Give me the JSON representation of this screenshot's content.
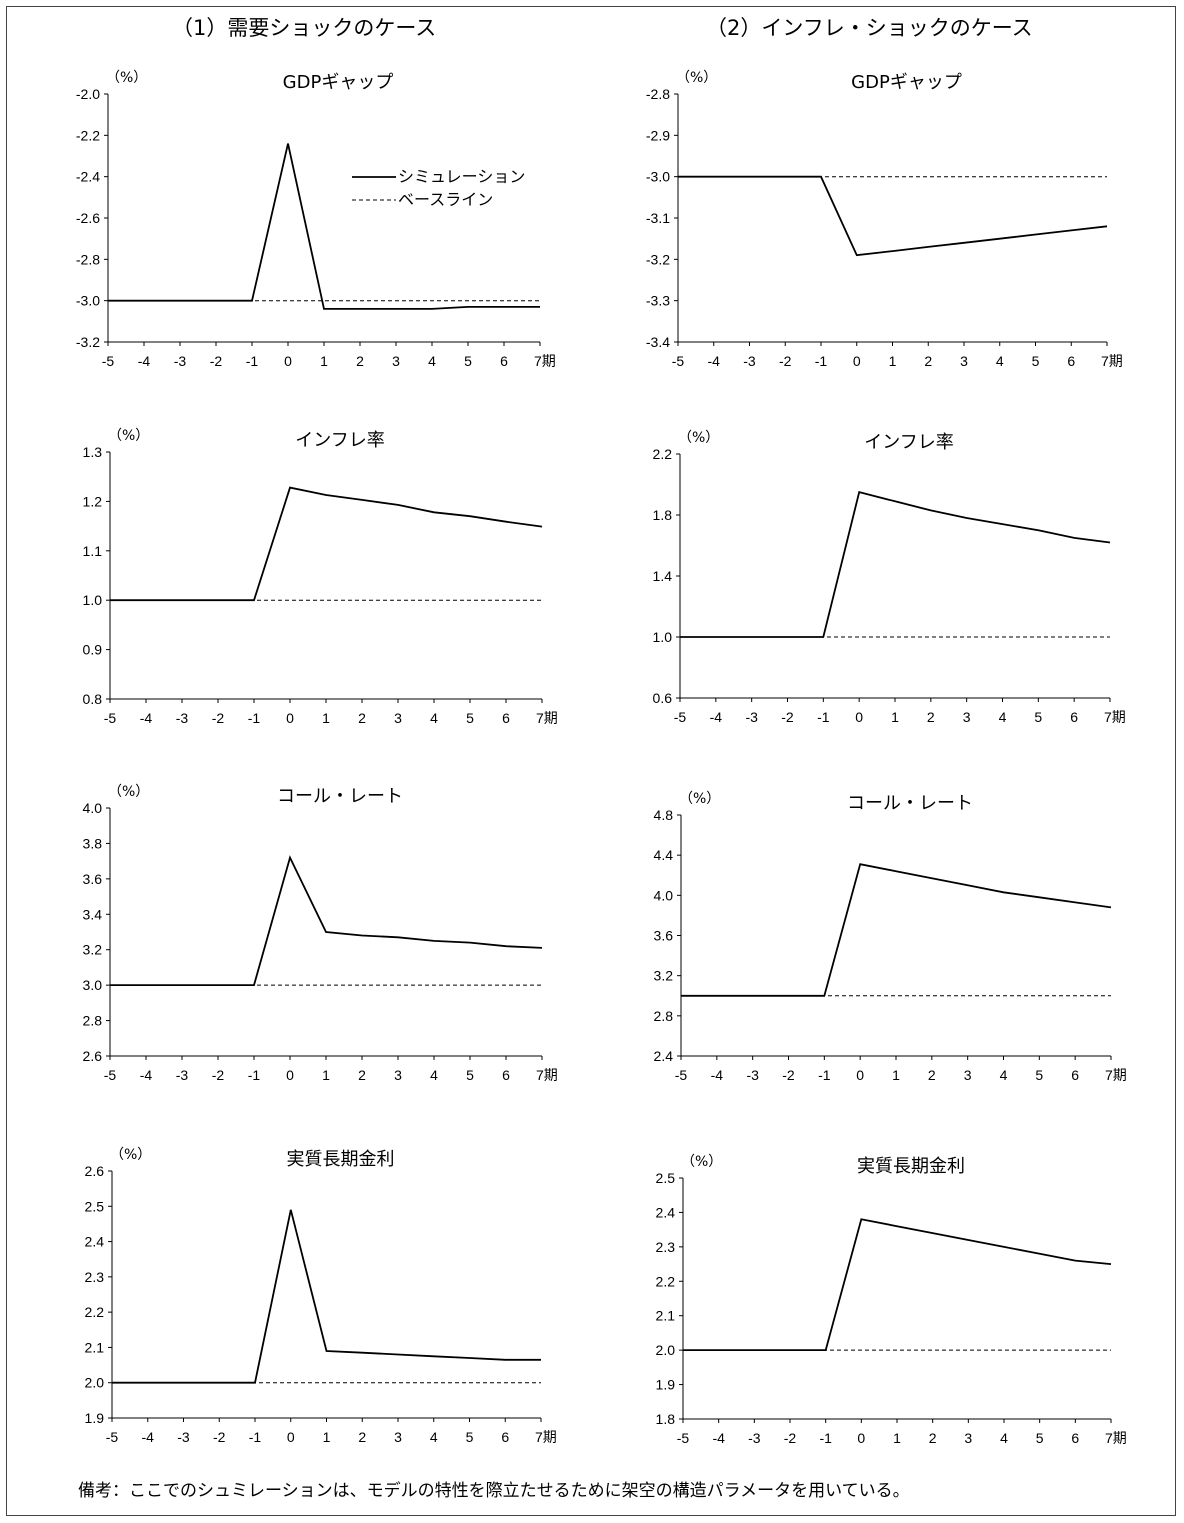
{
  "column_titles": [
    "（1）需要ショックのケース",
    "（2）インフレ・ショックのケース"
  ],
  "legend": {
    "simulation": "シミュレーション",
    "baseline": "ベースライン"
  },
  "footnote": "備考：ここでのシュミレーションは、モデルの特性を際立たせるために架空の構造パラメータを用いている。",
  "colors": {
    "line": "#000000",
    "axis": "#000000",
    "border": "#444444"
  },
  "chart_data": [
    {
      "type": "line",
      "title": "GDPギャップ",
      "unit": "（%）",
      "x": [
        -5,
        -4,
        -3,
        -2,
        -1,
        0,
        1,
        2,
        3,
        4,
        5,
        6,
        7
      ],
      "x_tick_labels": [
        "-5",
        "-4",
        "-3",
        "-2",
        "-1",
        "0",
        "1",
        "2",
        "3",
        "4",
        "5",
        "6",
        "7期"
      ],
      "ylim": [
        -3.2,
        -2.0
      ],
      "y_ticks": [
        "-2.0",
        "-2.2",
        "-2.4",
        "-2.6",
        "-2.8",
        "-3.0",
        "-3.2"
      ],
      "series": [
        {
          "name": "シミュレーション",
          "style": "solid",
          "values": [
            -3.0,
            -3.0,
            -3.0,
            -3.0,
            -3.0,
            -2.24,
            -3.04,
            -3.04,
            -3.04,
            -3.04,
            -3.03,
            -3.03,
            -3.03
          ]
        },
        {
          "name": "ベースライン",
          "style": "dashed",
          "values": [
            -3.0,
            -3.0,
            -3.0,
            -3.0,
            -3.0,
            -3.0,
            -3.0,
            -3.0,
            -3.0,
            -3.0,
            -3.0,
            -3.0,
            -3.0
          ]
        }
      ],
      "grid": false,
      "legend_position": "top-right"
    },
    {
      "type": "line",
      "title": "GDPギャップ",
      "unit": "（%）",
      "x": [
        -5,
        -4,
        -3,
        -2,
        -1,
        0,
        1,
        2,
        3,
        4,
        5,
        6,
        7
      ],
      "x_tick_labels": [
        "-5",
        "-4",
        "-3",
        "-2",
        "-1",
        "0",
        "1",
        "2",
        "3",
        "4",
        "5",
        "6",
        "7期"
      ],
      "ylim": [
        -3.4,
        -2.8
      ],
      "y_ticks": [
        "-2.8",
        "-2.9",
        "-3.0",
        "-3.1",
        "-3.2",
        "-3.3",
        "-3.4"
      ],
      "series": [
        {
          "name": "シミュレーション",
          "style": "solid",
          "values": [
            -3.0,
            -3.0,
            -3.0,
            -3.0,
            -3.0,
            -3.19,
            -3.18,
            -3.17,
            -3.16,
            -3.15,
            -3.14,
            -3.13,
            -3.12
          ]
        },
        {
          "name": "ベースライン",
          "style": "dashed",
          "values": [
            -3.0,
            -3.0,
            -3.0,
            -3.0,
            -3.0,
            -3.0,
            -3.0,
            -3.0,
            -3.0,
            -3.0,
            -3.0,
            -3.0,
            -3.0
          ]
        }
      ],
      "grid": false
    },
    {
      "type": "line",
      "title": "インフレ率",
      "unit": "（%）",
      "x": [
        -5,
        -4,
        -3,
        -2,
        -1,
        0,
        1,
        2,
        3,
        4,
        5,
        6,
        7
      ],
      "x_tick_labels": [
        "-5",
        "-4",
        "-3",
        "-2",
        "-1",
        "0",
        "1",
        "2",
        "3",
        "4",
        "5",
        "6",
        "7期"
      ],
      "ylim": [
        0.8,
        1.3
      ],
      "y_ticks": [
        "1.3",
        "1.2",
        "1.1",
        "1.0",
        "0.9",
        "0.8"
      ],
      "series": [
        {
          "name": "シミュレーション",
          "style": "solid",
          "values": [
            1.0,
            1.0,
            1.0,
            1.0,
            1.0,
            1.228,
            1.213,
            1.203,
            1.193,
            1.178,
            1.17,
            1.159,
            1.149
          ]
        },
        {
          "name": "ベースライン",
          "style": "dashed",
          "values": [
            1.0,
            1.0,
            1.0,
            1.0,
            1.0,
            1.0,
            1.0,
            1.0,
            1.0,
            1.0,
            1.0,
            1.0,
            1.0
          ]
        }
      ],
      "grid": false
    },
    {
      "type": "line",
      "title": "インフレ率",
      "unit": "（%）",
      "x": [
        -5,
        -4,
        -3,
        -2,
        -1,
        0,
        1,
        2,
        3,
        4,
        5,
        6,
        7
      ],
      "x_tick_labels": [
        "-5",
        "-4",
        "-3",
        "-2",
        "-1",
        "0",
        "1",
        "2",
        "3",
        "4",
        "5",
        "6",
        "7期"
      ],
      "ylim": [
        0.6,
        2.2
      ],
      "y_ticks": [
        "2.2",
        "1.8",
        "1.4",
        "1.0",
        "0.6"
      ],
      "series": [
        {
          "name": "シミュレーション",
          "style": "solid",
          "values": [
            1.0,
            1.0,
            1.0,
            1.0,
            1.0,
            1.95,
            1.89,
            1.83,
            1.78,
            1.74,
            1.7,
            1.65,
            1.62
          ]
        },
        {
          "name": "ベースライン",
          "style": "dashed",
          "values": [
            1.0,
            1.0,
            1.0,
            1.0,
            1.0,
            1.0,
            1.0,
            1.0,
            1.0,
            1.0,
            1.0,
            1.0,
            1.0
          ]
        }
      ],
      "grid": false
    },
    {
      "type": "line",
      "title": "コール・レート",
      "unit": "（%）",
      "x": [
        -5,
        -4,
        -3,
        -2,
        -1,
        0,
        1,
        2,
        3,
        4,
        5,
        6,
        7
      ],
      "x_tick_labels": [
        "-5",
        "-4",
        "-3",
        "-2",
        "-1",
        "0",
        "1",
        "2",
        "3",
        "4",
        "5",
        "6",
        "7期"
      ],
      "ylim": [
        2.6,
        4.0
      ],
      "y_ticks": [
        "4.0",
        "3.8",
        "3.6",
        "3.4",
        "3.2",
        "3.0",
        "2.8",
        "2.6"
      ],
      "series": [
        {
          "name": "シミュレーション",
          "style": "solid",
          "values": [
            3.0,
            3.0,
            3.0,
            3.0,
            3.0,
            3.72,
            3.3,
            3.28,
            3.27,
            3.25,
            3.24,
            3.22,
            3.21
          ]
        },
        {
          "name": "ベースライン",
          "style": "dashed",
          "values": [
            3.0,
            3.0,
            3.0,
            3.0,
            3.0,
            3.0,
            3.0,
            3.0,
            3.0,
            3.0,
            3.0,
            3.0,
            3.0
          ]
        }
      ],
      "grid": false
    },
    {
      "type": "line",
      "title": "コール・レート",
      "unit": "（%）",
      "x": [
        -5,
        -4,
        -3,
        -2,
        -1,
        0,
        1,
        2,
        3,
        4,
        5,
        6,
        7
      ],
      "x_tick_labels": [
        "-5",
        "-4",
        "-3",
        "-2",
        "-1",
        "0",
        "1",
        "2",
        "3",
        "4",
        "5",
        "6",
        "7期"
      ],
      "ylim": [
        2.4,
        4.8
      ],
      "y_ticks": [
        "4.8",
        "4.4",
        "4.0",
        "3.6",
        "3.2",
        "2.8",
        "2.4"
      ],
      "series": [
        {
          "name": "シミュレーション",
          "style": "solid",
          "values": [
            3.0,
            3.0,
            3.0,
            3.0,
            3.0,
            4.31,
            4.24,
            4.17,
            4.1,
            4.03,
            3.98,
            3.93,
            3.88
          ]
        },
        {
          "name": "ベースライン",
          "style": "dashed",
          "values": [
            3.0,
            3.0,
            3.0,
            3.0,
            3.0,
            3.0,
            3.0,
            3.0,
            3.0,
            3.0,
            3.0,
            3.0,
            3.0
          ]
        }
      ],
      "grid": false
    },
    {
      "type": "line",
      "title": "実質長期金利",
      "unit": "（%）",
      "x": [
        -5,
        -4,
        -3,
        -2,
        -1,
        0,
        1,
        2,
        3,
        4,
        5,
        6,
        7
      ],
      "x_tick_labels": [
        "-5",
        "-4",
        "-3",
        "-2",
        "-1",
        "0",
        "1",
        "2",
        "3",
        "4",
        "5",
        "6",
        "7期"
      ],
      "ylim": [
        1.9,
        2.6
      ],
      "y_ticks": [
        "2.6",
        "2.5",
        "2.4",
        "2.3",
        "2.2",
        "2.1",
        "2.0",
        "1.9"
      ],
      "series": [
        {
          "name": "シミュレーション",
          "style": "solid",
          "values": [
            2.0,
            2.0,
            2.0,
            2.0,
            2.0,
            2.49,
            2.09,
            2.085,
            2.08,
            2.075,
            2.07,
            2.065,
            2.065
          ]
        },
        {
          "name": "ベースライン",
          "style": "dashed",
          "values": [
            2.0,
            2.0,
            2.0,
            2.0,
            2.0,
            2.0,
            2.0,
            2.0,
            2.0,
            2.0,
            2.0,
            2.0,
            2.0
          ]
        }
      ],
      "grid": false
    },
    {
      "type": "line",
      "title": "実質長期金利",
      "unit": "（%）",
      "x": [
        -5,
        -4,
        -3,
        -2,
        -1,
        0,
        1,
        2,
        3,
        4,
        5,
        6,
        7
      ],
      "x_tick_labels": [
        "-5",
        "-4",
        "-3",
        "-2",
        "-1",
        "0",
        "1",
        "2",
        "3",
        "4",
        "5",
        "6",
        "7期"
      ],
      "ylim": [
        1.8,
        2.5
      ],
      "y_ticks": [
        "2.5",
        "2.4",
        "2.3",
        "2.2",
        "2.1",
        "2.0",
        "1.9",
        "1.8"
      ],
      "series": [
        {
          "name": "シミュレーション",
          "style": "solid",
          "values": [
            2.0,
            2.0,
            2.0,
            2.0,
            2.0,
            2.38,
            2.36,
            2.34,
            2.32,
            2.3,
            2.28,
            2.26,
            2.25
          ]
        },
        {
          "name": "ベースライン",
          "style": "dashed",
          "values": [
            2.0,
            2.0,
            2.0,
            2.0,
            2.0,
            2.0,
            2.0,
            2.0,
            2.0,
            2.0,
            2.0,
            2.0,
            2.0
          ]
        }
      ],
      "grid": false
    }
  ]
}
